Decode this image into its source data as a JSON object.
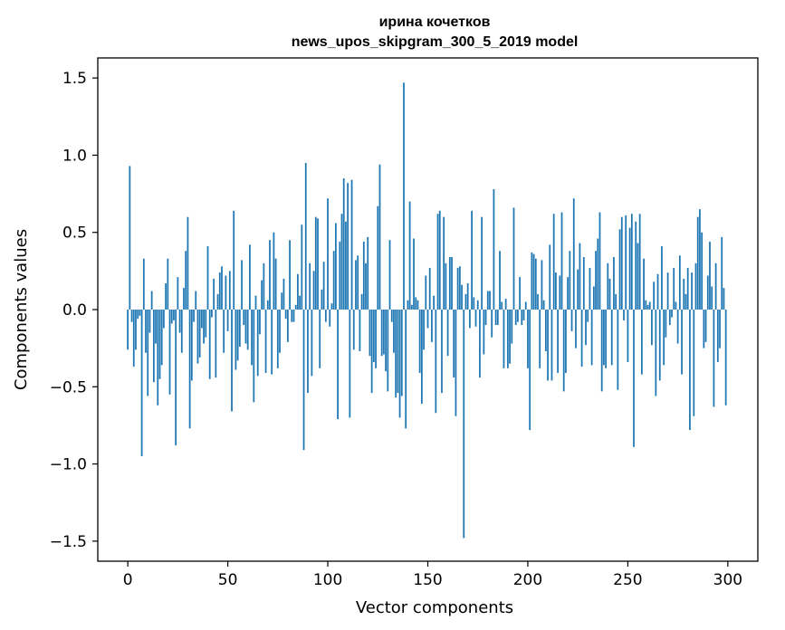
{
  "chart_data": {
    "type": "bar",
    "title_line1": "ирина кочетков",
    "title_line2": "news_upos_skipgram_300_5_2019 model",
    "xlabel": "Vector components",
    "ylabel": "Components values",
    "xlim": [
      -15,
      315
    ],
    "ylim": [
      -1.63,
      1.63
    ],
    "xticks": [
      0,
      50,
      100,
      150,
      200,
      250,
      300
    ],
    "xtick_labels": [
      "0",
      "50",
      "100",
      "150",
      "200",
      "250",
      "300"
    ],
    "yticks": [
      -1.5,
      -1.0,
      -0.5,
      0.0,
      0.5,
      1.0,
      1.5
    ],
    "ytick_labels": [
      "−1.5",
      "−1.0",
      "−0.5",
      "0.0",
      "0.5",
      "1.0",
      "1.5"
    ],
    "bar_color": "#1f77b4",
    "grid": false,
    "values": [
      -0.26,
      0.93,
      -0.08,
      -0.37,
      -0.26,
      -0.06,
      -0.04,
      -0.95,
      0.33,
      -0.28,
      -0.56,
      -0.15,
      0.12,
      -0.47,
      -0.22,
      -0.62,
      -0.45,
      -0.36,
      -0.12,
      0.17,
      0.33,
      -0.55,
      -0.09,
      -0.07,
      -0.88,
      0.21,
      -0.15,
      -0.28,
      0.14,
      0.38,
      0.6,
      -0.77,
      -0.46,
      -0.08,
      0.12,
      -0.35,
      -0.31,
      -0.12,
      -0.22,
      -0.18,
      0.41,
      -0.45,
      -0.05,
      0.2,
      -0.44,
      0.1,
      0.24,
      0.28,
      -0.28,
      0.22,
      -0.14,
      0.25,
      -0.66,
      0.64,
      -0.39,
      -0.33,
      -0.24,
      0.32,
      -0.1,
      -0.22,
      -0.26,
      0.42,
      -0.36,
      -0.6,
      0.09,
      -0.43,
      -0.16,
      0.19,
      0.3,
      -0.41,
      0.06,
      0.45,
      -0.42,
      0.5,
      0.33,
      -0.38,
      -0.28,
      0.11,
      0.2,
      -0.06,
      -0.21,
      0.45,
      -0.08,
      -0.08,
      0.03,
      0.23,
      0.09,
      0.55,
      -0.91,
      0.95,
      -0.54,
      0.3,
      -0.43,
      0.25,
      0.6,
      0.59,
      -0.38,
      0.13,
      0.31,
      -0.08,
      0.72,
      -0.11,
      0.04,
      0.38,
      0.56,
      -0.71,
      0.44,
      0.62,
      0.85,
      0.57,
      0.82,
      -0.7,
      0.84,
      -0.26,
      0.32,
      0.35,
      -0.27,
      0.1,
      0.44,
      0.3,
      0.47,
      -0.3,
      -0.54,
      -0.34,
      -0.38,
      0.67,
      0.94,
      -0.3,
      -0.29,
      -0.4,
      -0.53,
      0.45,
      -0.08,
      -0.28,
      -0.57,
      -0.54,
      -0.7,
      -0.56,
      1.47,
      -0.77,
      0.06,
      0.7,
      0.03,
      0.46,
      0.08,
      0.06,
      -0.41,
      -0.61,
      -0.26,
      0.22,
      -0.12,
      0.27,
      -0.21,
      0.09,
      -0.67,
      0.62,
      0.64,
      -0.54,
      0.6,
      0.3,
      -0.3,
      0.34,
      0.34,
      -0.44,
      -0.69,
      0.27,
      0.28,
      0.16,
      -1.48,
      0.1,
      0.17,
      -0.12,
      0.64,
      0.08,
      -0.11,
      0.06,
      -0.44,
      0.6,
      -0.29,
      -0.1,
      0.12,
      0.12,
      -0.18,
      0.78,
      -0.1,
      -0.1,
      0.38,
      0.05,
      -0.38,
      0.07,
      -0.38,
      -0.35,
      -0.22,
      0.66,
      -0.1,
      -0.08,
      0.21,
      -0.1,
      -0.07,
      0.05,
      -0.38,
      -0.78,
      0.37,
      0.36,
      0.33,
      0.1,
      -0.38,
      0.32,
      0.06,
      -0.27,
      -0.46,
      0.42,
      -0.46,
      0.62,
      0.24,
      -0.41,
      0.22,
      0.63,
      -0.53,
      -0.41,
      0.21,
      0.38,
      -0.14,
      0.72,
      -0.25,
      0.26,
      0.43,
      -0.37,
      0.34,
      -0.23,
      -0.08,
      0.27,
      -0.36,
      0.15,
      0.38,
      0.46,
      0.63,
      -0.53,
      -0.36,
      -0.38,
      0.3,
      0.2,
      -0.36,
      0.34,
      0.1,
      -0.52,
      0.52,
      0.6,
      -0.07,
      0.61,
      -0.34,
      0.53,
      0.62,
      -0.89,
      0.57,
      0.43,
      0.62,
      -0.42,
      0.33,
      0.06,
      0.03,
      0.05,
      -0.23,
      0.18,
      -0.56,
      0.23,
      -0.46,
      0.41,
      -0.36,
      -0.18,
      0.24,
      -0.1,
      -0.05,
      0.27,
      0.05,
      -0.22,
      0.35,
      -0.42,
      0.2,
      0.1,
      0.27,
      -0.78,
      0.24,
      -0.69,
      0.3,
      0.6,
      0.65,
      0.5,
      -0.25,
      -0.21,
      0.22,
      0.44,
      0.15,
      -0.63,
      0.3,
      -0.34,
      -0.25,
      0.47,
      0.14,
      -0.62
    ]
  }
}
